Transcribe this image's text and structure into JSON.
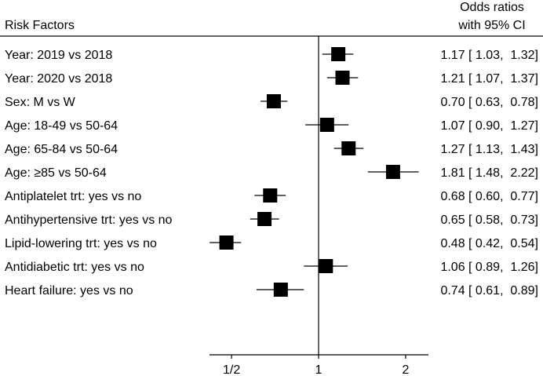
{
  "chart_data": {
    "type": "forest",
    "title": "",
    "header_left": "Risk Factors",
    "header_right_line1": "Odds ratios",
    "header_right_line2": "with 95% CI",
    "x_scale": "log",
    "reference_line": 1,
    "xlim": [
      0.4,
      2.3
    ],
    "x_ticks": [
      {
        "value": 0.5,
        "label": "1/2"
      },
      {
        "value": 1,
        "label": "1"
      },
      {
        "value": 2,
        "label": "2"
      }
    ],
    "rows": [
      {
        "label": "Year: 2019 vs 2018",
        "or": 1.17,
        "lo": 1.03,
        "hi": 1.32,
        "text": "1.17 [ 1.03,  1.32]"
      },
      {
        "label": "Year: 2020 vs 2018",
        "or": 1.21,
        "lo": 1.07,
        "hi": 1.37,
        "text": "1.21 [ 1.07,  1.37]"
      },
      {
        "label": "Sex: M vs W",
        "or": 0.7,
        "lo": 0.63,
        "hi": 0.78,
        "text": "0.70 [ 0.63,  0.78]"
      },
      {
        "label": "Age: 18-49 vs 50-64",
        "or": 1.07,
        "lo": 0.9,
        "hi": 1.27,
        "text": "1.07 [ 0.90,  1.27]"
      },
      {
        "label": "Age: 65-84 vs 50-64",
        "or": 1.27,
        "lo": 1.13,
        "hi": 1.43,
        "text": "1.27 [ 1.13,  1.43]"
      },
      {
        "label": "Age: ≥85 vs 50-64",
        "or": 1.81,
        "lo": 1.48,
        "hi": 2.22,
        "text": "1.81 [ 1.48,  2.22]"
      },
      {
        "label": "Antiplatelet trt: yes vs no",
        "or": 0.68,
        "lo": 0.6,
        "hi": 0.77,
        "text": "0.68 [ 0.60,  0.77]"
      },
      {
        "label": "Antihypertensive trt: yes vs no",
        "or": 0.65,
        "lo": 0.58,
        "hi": 0.73,
        "text": "0.65 [ 0.58,  0.73]"
      },
      {
        "label": "Lipid-lowering  trt: yes vs no",
        "or": 0.48,
        "lo": 0.42,
        "hi": 0.54,
        "text": "0.48 [ 0.42,  0.54]"
      },
      {
        "label": "Antidiabetic trt: yes vs no",
        "or": 1.06,
        "lo": 0.89,
        "hi": 1.26,
        "text": "1.06 [ 0.89,  1.26]"
      },
      {
        "label": "Heart failure: yes vs no",
        "or": 0.74,
        "lo": 0.61,
        "hi": 0.89,
        "text": "0.74 [ 0.61,  0.89]"
      }
    ]
  }
}
